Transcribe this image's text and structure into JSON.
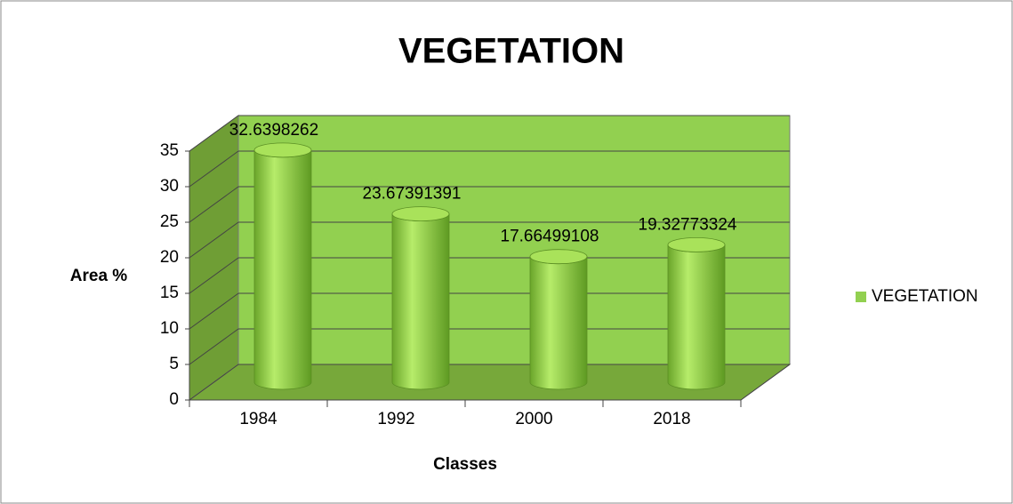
{
  "chart_data": {
    "type": "bar",
    "title": "VEGETATION",
    "xlabel": "Classes",
    "ylabel": "Area %",
    "categories": [
      "1984",
      "1992",
      "2000",
      "2018"
    ],
    "series": [
      {
        "name": "VEGETATION",
        "color": "#92d050",
        "values": [
          32.6398262,
          23.67391391,
          17.66499108,
          19.32773324
        ]
      }
    ],
    "ylim": [
      0,
      35
    ],
    "yticks": [
      0,
      5,
      10,
      15,
      20,
      25,
      30,
      35
    ],
    "grid": true,
    "legend": "right"
  }
}
